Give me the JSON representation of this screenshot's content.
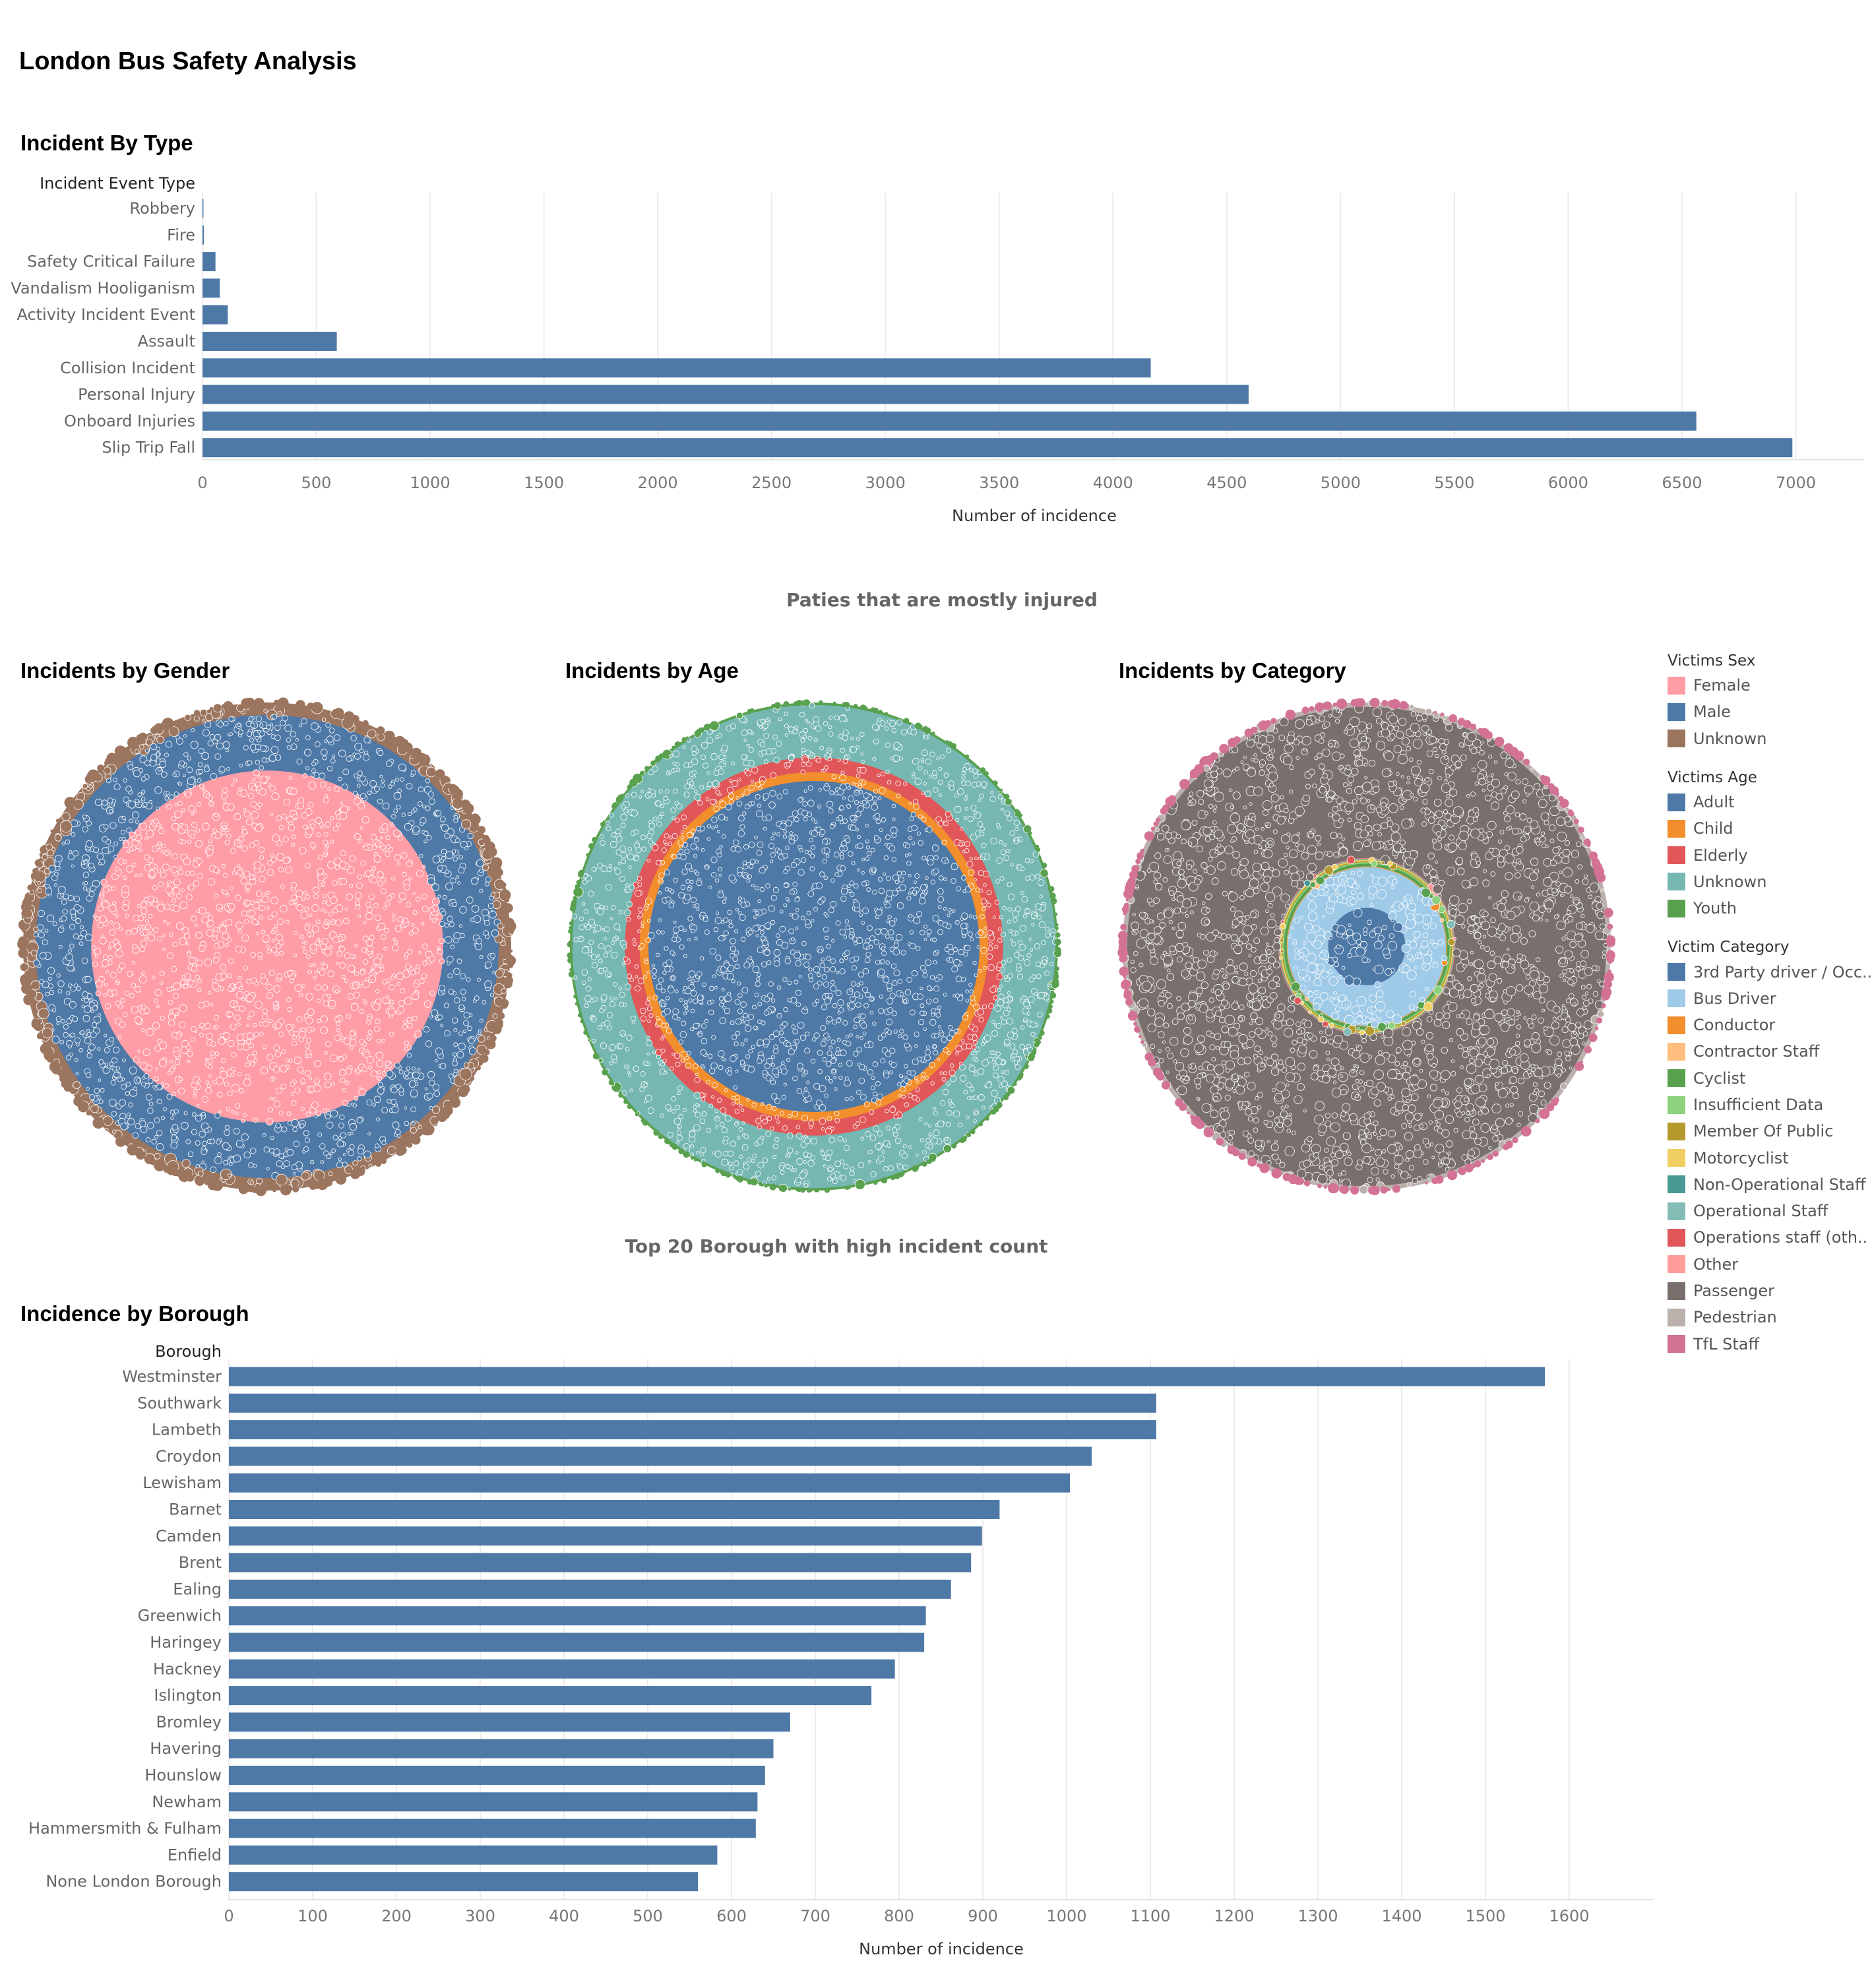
{
  "dashboard": {
    "title": "London Bus Safety Analysis",
    "sections": {
      "type_title": "Incident By Type",
      "injured_title": "Paties that are mostly injured",
      "gender_title": "Incidents by Gender",
      "age_title": "Incidents by Age",
      "category_title": "Incidents by Category",
      "borough_top_title": "Top 20 Borough with high incident count",
      "borough_title": "Incidence by Borough"
    }
  },
  "colors": {
    "bar": "#4e79a7",
    "grid": "#ececec",
    "axis_text": "#777777",
    "label_text": "#666666"
  },
  "chart_data": [
    {
      "type": "bar",
      "orientation": "horizontal",
      "title": "Incident By Type",
      "category_header": "Incident Event Type",
      "categories": [
        "Robbery",
        "Fire",
        "Safety Critical Failure",
        "Vandalism Hooliganism",
        "Activity Incident Event",
        "Assault",
        "Collision Incident",
        "Personal Injury",
        "Onboard Injuries",
        "Slip Trip Fall"
      ],
      "values": [
        4,
        6,
        57,
        76,
        111,
        590,
        4166,
        4596,
        6563,
        6985
      ],
      "xlabel": "Number of incidence",
      "xlim": [
        0,
        7300
      ],
      "xticks": [
        0,
        500,
        1000,
        1500,
        2000,
        2500,
        3000,
        3500,
        4000,
        4500,
        5000,
        5500,
        6000,
        6500,
        7000
      ],
      "grid": true
    },
    {
      "type": "packed-bubble",
      "title": "Incidents by Gender",
      "legend_title": "Victims Sex",
      "series": [
        {
          "name": "Female",
          "color": "#ff9da7",
          "share": 0.52
        },
        {
          "name": "Male",
          "color": "#4e79a7",
          "share": 0.38
        },
        {
          "name": "Unknown",
          "color": "#9c755f",
          "share": 0.1
        }
      ]
    },
    {
      "type": "packed-bubble",
      "title": "Incidents by Age",
      "legend_title": "Victims Age",
      "series": [
        {
          "name": "Adult",
          "color": "#4e79a7",
          "share": 0.46
        },
        {
          "name": "Child",
          "color": "#f28e2b",
          "share": 0.05
        },
        {
          "name": "Elderly",
          "color": "#e15759",
          "share": 0.09
        },
        {
          "name": "Unknown",
          "color": "#76b7b2",
          "share": 0.38
        },
        {
          "name": "Youth",
          "color": "#59a14f",
          "share": 0.02
        }
      ]
    },
    {
      "type": "packed-bubble",
      "title": "Incidents by Category",
      "legend_title": "Victim Category",
      "series": [
        {
          "name": "3rd Party driver / Occupant",
          "color": "#4e79a7",
          "share": 0.025
        },
        {
          "name": "Bus Driver",
          "color": "#a0cbe8",
          "share": 0.08
        },
        {
          "name": "Conductor",
          "color": "#f28e2b",
          "share": 0.001
        },
        {
          "name": "Contractor Staff",
          "color": "#ffbe7d",
          "share": 0.001
        },
        {
          "name": "Cyclist",
          "color": "#59a14f",
          "share": 0.008
        },
        {
          "name": "Insufficient Data",
          "color": "#8cd17d",
          "share": 0.004
        },
        {
          "name": "Member Of Public",
          "color": "#b6992d",
          "share": 0.003
        },
        {
          "name": "Motorcyclist",
          "color": "#f1ce63",
          "share": 0.004
        },
        {
          "name": "Non-Operational Staff",
          "color": "#499894",
          "share": 0.001
        },
        {
          "name": "Operational Staff",
          "color": "#86bcb6",
          "share": 0.002
        },
        {
          "name": "Operations staff (other)",
          "color": "#e15759",
          "share": 0.001
        },
        {
          "name": "Other",
          "color": "#ff9d9a",
          "share": 0.001
        },
        {
          "name": "Passenger",
          "color": "#79706e",
          "share": 0.83
        },
        {
          "name": "Pedestrian",
          "color": "#bab0ac",
          "share": 0.035
        },
        {
          "name": "TfL Staff",
          "color": "#d37295",
          "share": 0.001
        }
      ]
    },
    {
      "type": "bar",
      "orientation": "horizontal",
      "title": "Incidence by Borough",
      "category_header": "Borough",
      "categories": [
        "Westminster",
        "Southwark",
        "Lambeth",
        "Croydon",
        "Lewisham",
        "Barnet",
        "Camden",
        "Brent",
        "Ealing",
        "Greenwich",
        "Haringey",
        "Hackney",
        "Islington",
        "Bromley",
        "Havering",
        "Hounslow",
        "Newham",
        "Hammersmith & Fulham",
        "Enfield",
        "None London Borough"
      ],
      "values": [
        1571,
        1107,
        1107,
        1030,
        1004,
        920,
        899,
        886,
        862,
        832,
        830,
        795,
        767,
        670,
        650,
        640,
        631,
        629,
        583,
        560
      ],
      "xlabel": "Number of incidence",
      "xlim": [
        0,
        1700
      ],
      "xticks": [
        0,
        100,
        200,
        300,
        400,
        500,
        600,
        700,
        800,
        900,
        1000,
        1100,
        1200,
        1300,
        1400,
        1500,
        1600
      ],
      "grid": true
    }
  ],
  "legends": [
    {
      "title": "Victims Sex",
      "items": [
        {
          "label": "Female",
          "color": "#ff9da7"
        },
        {
          "label": "Male",
          "color": "#4e79a7"
        },
        {
          "label": "Unknown",
          "color": "#9c755f"
        }
      ]
    },
    {
      "title": "Victims Age",
      "items": [
        {
          "label": "Adult",
          "color": "#4e79a7"
        },
        {
          "label": "Child",
          "color": "#f28e2b"
        },
        {
          "label": "Elderly",
          "color": "#e15759"
        },
        {
          "label": "Unknown",
          "color": "#76b7b2"
        },
        {
          "label": "Youth",
          "color": "#59a14f"
        }
      ]
    },
    {
      "title": "Victim Category",
      "items": [
        {
          "label": "3rd Party driver / Occ..",
          "color": "#4e79a7"
        },
        {
          "label": "Bus Driver",
          "color": "#a0cbe8"
        },
        {
          "label": "Conductor",
          "color": "#f28e2b"
        },
        {
          "label": "Contractor Staff",
          "color": "#ffbe7d"
        },
        {
          "label": "Cyclist",
          "color": "#59a14f"
        },
        {
          "label": "Insufficient Data",
          "color": "#8cd17d"
        },
        {
          "label": "Member Of Public",
          "color": "#b6992d"
        },
        {
          "label": "Motorcyclist",
          "color": "#f1ce63"
        },
        {
          "label": "Non-Operational Staff",
          "color": "#499894"
        },
        {
          "label": "Operational Staff",
          "color": "#86bcb6"
        },
        {
          "label": "Operations staff (oth..",
          "color": "#e15759"
        },
        {
          "label": "Other",
          "color": "#ff9d9a"
        },
        {
          "label": "Passenger",
          "color": "#79706e"
        },
        {
          "label": "Pedestrian",
          "color": "#bab0ac"
        },
        {
          "label": "TfL Staff",
          "color": "#d37295"
        }
      ]
    }
  ]
}
